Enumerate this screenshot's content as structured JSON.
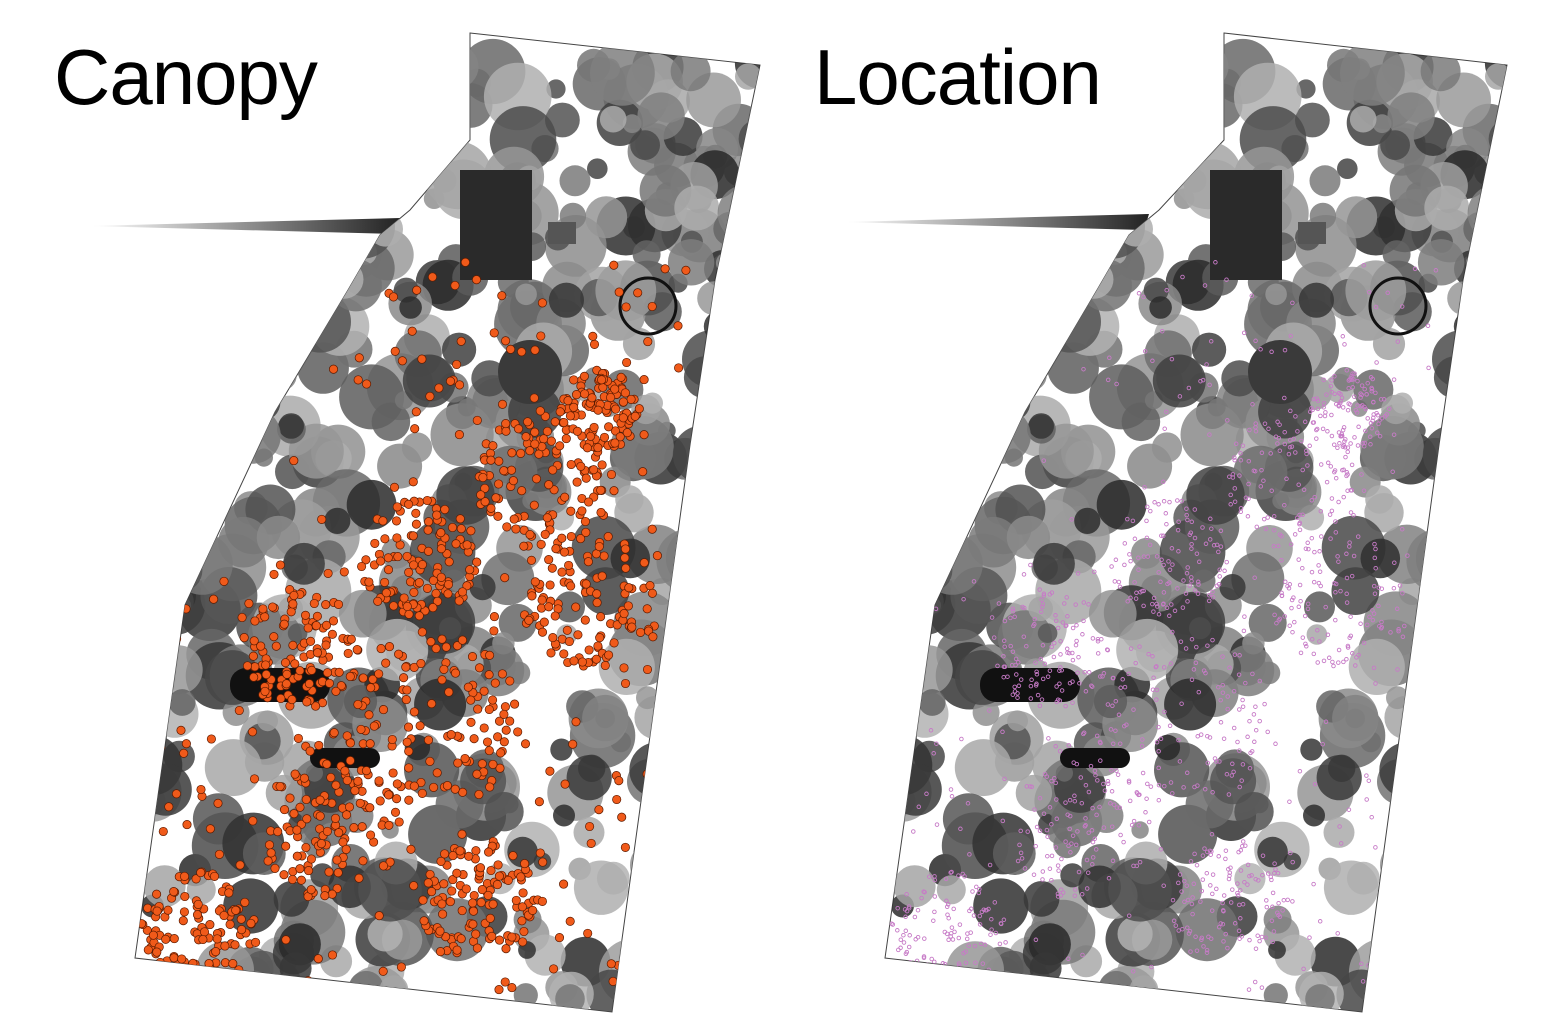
{
  "panels": [
    {
      "id": "canopy",
      "title": "Canopy",
      "marker_color": "#f05a1a",
      "marker_stroke": "#5a1a00",
      "marker_style": "filled-circle"
    },
    {
      "id": "location",
      "title": "Location",
      "marker_color": "#c77bc7",
      "marker_stroke": "#7a2f7a",
      "marker_style": "small-ring"
    }
  ],
  "colors": {
    "background": "#ffffff",
    "ground": "#ffffff",
    "canopy_dark": "#2f2f2f",
    "canopy_mid": "#6a6a6a",
    "canopy_light": "#a8a8a8",
    "building": "#1a1a1a"
  }
}
